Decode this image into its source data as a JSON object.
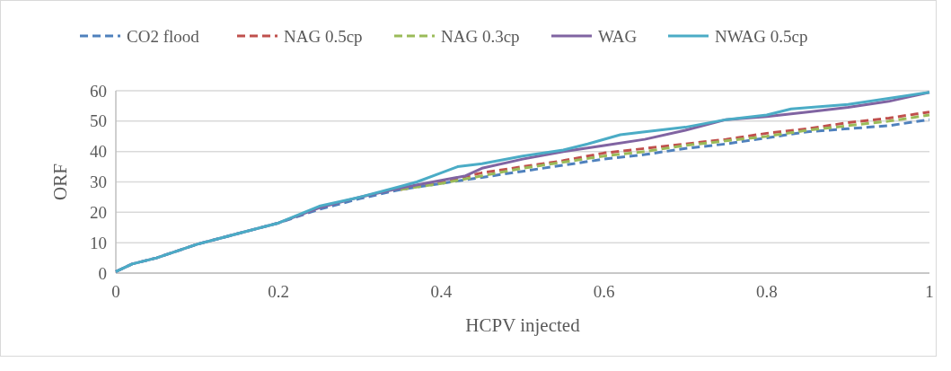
{
  "chart_data": {
    "type": "line",
    "xlabel": "HCPV injected",
    "ylabel": "ORF",
    "xlim": [
      0,
      1
    ],
    "xticks": [
      0,
      0.2,
      0.4,
      0.6,
      0.8,
      1
    ],
    "ylim": [
      0,
      60
    ],
    "yticks": [
      0,
      10,
      20,
      30,
      40,
      50,
      60
    ],
    "grid": "y",
    "legend": "top",
    "marker": "none",
    "series": [
      {
        "name": "CO2 flood",
        "color": "#4f81bd",
        "line_style": "dashed",
        "x": [
          0,
          0.02,
          0.05,
          0.1,
          0.15,
          0.2,
          0.25,
          0.3,
          0.35,
          0.4,
          0.45,
          0.5,
          0.55,
          0.6,
          0.65,
          0.7,
          0.75,
          0.8,
          0.85,
          0.9,
          0.95,
          1
        ],
        "values": [
          0.5,
          3,
          5,
          9.5,
          13,
          16.5,
          21,
          24.5,
          27.5,
          29.5,
          31.5,
          33.5,
          35.5,
          37.5,
          39,
          41,
          42.5,
          44.5,
          46.5,
          47.5,
          48.5,
          50.5
        ]
      },
      {
        "name": "NAG 0.5cp",
        "color": "#c0504d",
        "line_style": "dashed",
        "x": [
          0.35,
          0.4,
          0.45,
          0.5,
          0.55,
          0.6,
          0.65,
          0.7,
          0.75,
          0.8,
          0.85,
          0.9,
          0.95,
          1
        ],
        "values": [
          27.5,
          30,
          33,
          35,
          37,
          39.5,
          41,
          42.5,
          44,
          46,
          47.5,
          49.5,
          51,
          53
        ]
      },
      {
        "name": "NAG 0.3cp",
        "color": "#9bbb59",
        "line_style": "dashed",
        "x": [
          0.35,
          0.4,
          0.45,
          0.5,
          0.55,
          0.6,
          0.65,
          0.7,
          0.75,
          0.8,
          0.85,
          0.9,
          0.95,
          1
        ],
        "values": [
          27.5,
          29.5,
          32,
          34.5,
          36.5,
          38.5,
          40,
          42,
          43.5,
          45,
          47,
          48.5,
          50,
          52
        ]
      },
      {
        "name": "WAG",
        "color": "#8064a2",
        "line_style": "solid",
        "x": [
          0,
          0.02,
          0.05,
          0.1,
          0.15,
          0.2,
          0.25,
          0.3,
          0.35,
          0.4,
          0.43,
          0.45,
          0.5,
          0.55,
          0.6,
          0.65,
          0.7,
          0.75,
          0.8,
          0.85,
          0.9,
          0.95,
          1
        ],
        "values": [
          0.5,
          3,
          5,
          9.5,
          13,
          16.5,
          21.5,
          25,
          28,
          30.5,
          32,
          34.5,
          37.5,
          40,
          42,
          44,
          47,
          50.5,
          51.5,
          53,
          54.5,
          56.5,
          59.5
        ]
      },
      {
        "name": "NWAG 0.5cp",
        "color": "#4bacc6",
        "line_style": "solid",
        "x": [
          0,
          0.02,
          0.05,
          0.1,
          0.15,
          0.2,
          0.25,
          0.3,
          0.35,
          0.37,
          0.4,
          0.42,
          0.45,
          0.5,
          0.55,
          0.58,
          0.62,
          0.65,
          0.7,
          0.75,
          0.8,
          0.83,
          0.9,
          0.95,
          1
        ],
        "values": [
          0.5,
          3,
          5,
          9.5,
          13,
          16.5,
          22,
          25,
          28.5,
          30,
          33,
          35,
          36,
          38.5,
          40.5,
          42.5,
          45.5,
          46.5,
          48,
          50.5,
          52,
          54,
          55.5,
          57.5,
          59.5
        ]
      }
    ]
  }
}
